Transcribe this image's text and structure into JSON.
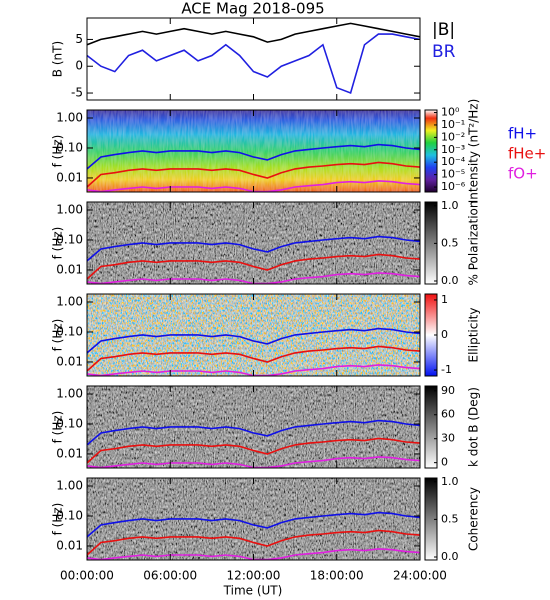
{
  "title": "ACE Mag 2018-095",
  "xlabel": "Time (UT)",
  "xlim": [
    0,
    24
  ],
  "xticks": [
    {
      "value": 0,
      "label": "00:00:00"
    },
    {
      "value": 6,
      "label": "06:00:00"
    },
    {
      "value": 12,
      "label": "12:00:00"
    },
    {
      "value": 18,
      "label": "18:00:00"
    },
    {
      "value": 24,
      "label": "24:00:00"
    }
  ],
  "x": [
    0,
    1,
    2,
    3,
    4,
    5,
    6,
    7,
    8,
    9,
    10,
    11,
    12,
    13,
    14,
    15,
    16,
    17,
    18,
    19,
    20,
    21,
    22,
    23,
    24
  ],
  "chart_data": [
    {
      "type": "line",
      "ylabel": "B (nT)",
      "ylim": [
        -6.3,
        9
      ],
      "yticks": [
        5,
        0,
        -5
      ],
      "series": [
        {
          "name": "|B|",
          "color": "#000000",
          "values": [
            4,
            5,
            5.5,
            6,
            6.5,
            6,
            6.5,
            7,
            6.5,
            6,
            6.5,
            6,
            5.5,
            4.5,
            5,
            6,
            6.5,
            7,
            7.5,
            8,
            7.5,
            7,
            6.5,
            6,
            5.5
          ]
        },
        {
          "name": "BR",
          "color": "#2020e0",
          "values": [
            2,
            0,
            -1,
            2,
            3,
            1,
            2,
            3,
            1,
            2,
            4,
            2,
            -1,
            -2,
            0,
            1,
            2,
            4,
            -4,
            -5,
            4,
            6,
            6,
            5.5,
            5
          ]
        }
      ]
    },
    {
      "type": "spectrogram",
      "ylabel": "f (Hz)",
      "log": true,
      "ylim": [
        0.0034,
        1.85
      ],
      "yticks": [
        {
          "value": 1,
          "label": "1.00"
        },
        {
          "value": 0.1,
          "label": "0.10"
        },
        {
          "value": 0.01,
          "label": "0.01"
        }
      ],
      "colormap": "rainbow",
      "colorbar": {
        "label": "Intensity (nT²/Hz)",
        "log": true,
        "lim": [
          4e-07,
          1.6
        ],
        "ticks": [
          {
            "value": 1,
            "label": "10⁰"
          },
          {
            "value": 0.1,
            "label": "10⁻¹"
          },
          {
            "value": 0.01,
            "label": "10⁻²"
          },
          {
            "value": 0.001,
            "label": "10⁻³"
          },
          {
            "value": 0.0001,
            "label": "10⁻⁴"
          },
          {
            "value": 1e-05,
            "label": "10⁻⁵"
          },
          {
            "value": 1e-06,
            "label": "10⁻⁶"
          }
        ]
      },
      "series": [
        {
          "name": "fH+",
          "color": "#1010e8",
          "values": [
            0.02,
            0.05,
            0.06,
            0.07,
            0.08,
            0.07,
            0.08,
            0.08,
            0.08,
            0.07,
            0.08,
            0.07,
            0.05,
            0.04,
            0.06,
            0.08,
            0.09,
            0.1,
            0.11,
            0.12,
            0.11,
            0.13,
            0.12,
            0.1,
            0.09
          ]
        },
        {
          "name": "fHe+",
          "color": "#e81010",
          "values": [
            0.005,
            0.013,
            0.015,
            0.018,
            0.02,
            0.018,
            0.02,
            0.02,
            0.02,
            0.018,
            0.02,
            0.018,
            0.013,
            0.01,
            0.015,
            0.02,
            0.023,
            0.025,
            0.028,
            0.03,
            0.028,
            0.033,
            0.03,
            0.025,
            0.023
          ]
        },
        {
          "name": "fO+",
          "color": "#e020e0",
          "values": [
            0.004,
            0.0035,
            0.004,
            0.0045,
            0.005,
            0.0045,
            0.005,
            0.005,
            0.005,
            0.0045,
            0.005,
            0.0045,
            0.0035,
            0.0035,
            0.004,
            0.005,
            0.0055,
            0.006,
            0.007,
            0.0075,
            0.007,
            0.008,
            0.0075,
            0.0065,
            0.006
          ]
        }
      ]
    },
    {
      "type": "spectrogram",
      "ylabel": "f (Hz)",
      "log": true,
      "ylim": [
        0.0034,
        1.85
      ],
      "yticks": [
        {
          "value": 1,
          "label": "1.00"
        },
        {
          "value": 0.1,
          "label": "0.10"
        },
        {
          "value": 0.01,
          "label": "0.01"
        }
      ],
      "colormap": "gray",
      "colorbar": {
        "label": "% Polarization",
        "lim": [
          -0.04,
          1.05
        ],
        "ticks": [
          {
            "value": 1,
            "label": "1.0"
          },
          {
            "value": 0.5,
            "label": "0.5"
          },
          {
            "value": 0,
            "label": "0.0"
          }
        ]
      }
    },
    {
      "type": "spectrogram",
      "ylabel": "f (Hz)",
      "log": true,
      "ylim": [
        0.0034,
        1.85
      ],
      "yticks": [
        {
          "value": 1,
          "label": "1.00"
        },
        {
          "value": 0.1,
          "label": "0.10"
        },
        {
          "value": 0.01,
          "label": "0.01"
        }
      ],
      "colormap": "bwr",
      "colorbar": {
        "label": "Ellipticity",
        "lim": [
          -1.17,
          1.17
        ],
        "ticks": [
          1,
          0,
          -1
        ]
      }
    },
    {
      "type": "spectrogram",
      "ylabel": "f (Hz)",
      "log": true,
      "ylim": [
        0.0034,
        1.85
      ],
      "yticks": [
        {
          "value": 1,
          "label": "1.00"
        },
        {
          "value": 0.1,
          "label": "0.10"
        },
        {
          "value": 0.01,
          "label": "0.01"
        }
      ],
      "colormap": "gray",
      "colorbar": {
        "label": "k dot B (Deg)",
        "lim": [
          -6.7,
          96
        ],
        "ticks": [
          90,
          60,
          30,
          0
        ]
      }
    },
    {
      "type": "spectrogram",
      "ylabel": "f (Hz)",
      "log": true,
      "ylim": [
        0.0034,
        1.85
      ],
      "yticks": [
        {
          "value": 1,
          "label": "1.00"
        },
        {
          "value": 0.1,
          "label": "0.10"
        },
        {
          "value": 0.01,
          "label": "0.01"
        }
      ],
      "colormap": "gray",
      "colorbar": {
        "label": "Coherency",
        "lim": [
          -0.04,
          1.05
        ],
        "ticks": [
          {
            "value": 1,
            "label": "1.0"
          },
          {
            "value": 0.5,
            "label": "0.5"
          },
          {
            "value": 0,
            "label": "0.0"
          }
        ]
      }
    }
  ]
}
